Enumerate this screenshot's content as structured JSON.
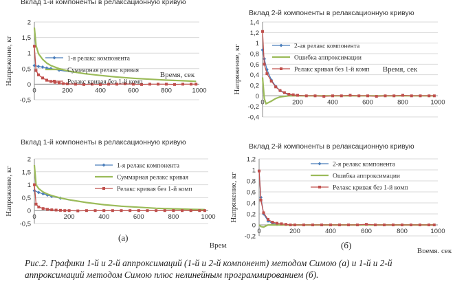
{
  "chart_data": [
    {
      "type": "line",
      "title": "Вклад 1-й компоненты в релаксационную кривую",
      "xlabel": "Время, сек",
      "ylabel": "Напряжение, кг",
      "xlim": [
        0,
        1000
      ],
      "ylim": [
        -0.5,
        2
      ],
      "yticks": [
        "-0,5",
        "0",
        "0,5",
        "1",
        "1,5",
        "2"
      ],
      "xticks": [
        "0",
        "200",
        "400",
        "600",
        "800",
        "1000"
      ],
      "legend_position": "top-right",
      "series": [
        {
          "name": "1-я релакс компонента",
          "color": "#4a7ebb",
          "marker": "diamond",
          "x": [
            0,
            25,
            50,
            75,
            100,
            150,
            200,
            300,
            400,
            500,
            600,
            700,
            800,
            900,
            980
          ],
          "values": [
            0.6,
            0.57,
            0.55,
            0.52,
            0.5,
            0.45,
            0.41,
            0.34,
            0.28,
            0.23,
            0.19,
            0.16,
            0.13,
            0.11,
            0.09
          ]
        },
        {
          "name": "Суммарная релакс кривая",
          "color": "#9bbb59",
          "marker": "none",
          "x": [
            0,
            10,
            25,
            50,
            75,
            100,
            150,
            200,
            300,
            400,
            500,
            600,
            700,
            800,
            900,
            980
          ],
          "values": [
            1.82,
            1.25,
            0.98,
            0.8,
            0.68,
            0.6,
            0.5,
            0.43,
            0.34,
            0.28,
            0.23,
            0.19,
            0.16,
            0.13,
            0.11,
            0.09
          ]
        },
        {
          "name": "Релакс кривая без 1-й комп",
          "color": "#c0504d",
          "marker": "square",
          "x": [
            0,
            10,
            25,
            50,
            75,
            100,
            125,
            150,
            175,
            200,
            250,
            300,
            350,
            400,
            450,
            500,
            550,
            600,
            650,
            700,
            750,
            800,
            850,
            900,
            950,
            980
          ],
          "values": [
            1.22,
            0.44,
            0.3,
            0.2,
            0.13,
            0.09,
            0.06,
            0.04,
            0.02,
            0.01,
            0.0,
            -0.01,
            0.0,
            -0.01,
            0.0,
            0.0,
            0.01,
            0.0,
            -0.01,
            0.0,
            0.0,
            0.0,
            -0.01,
            0.0,
            0.0,
            0.0
          ]
        }
      ]
    },
    {
      "type": "line",
      "title": "Вклад 2-й компоненты в релаксационную кривую",
      "xlabel": "Время, сек",
      "ylabel": "Напряжение, кг",
      "xlim": [
        0,
        1000
      ],
      "ylim": [
        -0.4,
        1.4
      ],
      "yticks": [
        "-0,4",
        "-0,2",
        "0",
        "0,2",
        "0,4",
        "0,6",
        "0,8",
        "1",
        "1,2",
        "1,4"
      ],
      "xticks": [
        "0",
        "200",
        "400",
        "600",
        "800",
        "1000"
      ],
      "legend_position": "top-right",
      "series": [
        {
          "name": "2-ая релакс компонента",
          "color": "#4a7ebb",
          "marker": "diamond",
          "x": [
            0,
            10,
            25,
            50,
            75,
            100,
            125,
            150,
            200,
            250,
            300,
            400,
            600,
            800,
            980
          ],
          "values": [
            0.87,
            0.7,
            0.5,
            0.3,
            0.18,
            0.1,
            0.05,
            0.02,
            0.01,
            0.0,
            0.0,
            0.0,
            0.0,
            0.0,
            0.0
          ]
        },
        {
          "name": "Ошибка аппроксимации",
          "color": "#9bbb59",
          "marker": "none",
          "x": [
            0,
            10,
            20,
            50,
            75,
            100,
            150,
            200,
            300,
            400,
            600,
            800,
            980
          ],
          "values": [
            0.35,
            -0.05,
            -0.15,
            -0.1,
            -0.05,
            -0.02,
            0.0,
            0.0,
            0.0,
            0.0,
            0.0,
            0.0,
            0.0
          ]
        },
        {
          "name": "Релакс кривая без 1-й комп",
          "color": "#c0504d",
          "marker": "square",
          "x": [
            0,
            10,
            25,
            50,
            75,
            100,
            125,
            150,
            175,
            200,
            250,
            300,
            350,
            400,
            450,
            500,
            550,
            600,
            650,
            700,
            750,
            800,
            850,
            900,
            950,
            980
          ],
          "values": [
            1.22,
            0.6,
            0.42,
            0.28,
            0.17,
            0.1,
            0.06,
            0.03,
            0.02,
            0.01,
            0.0,
            0.0,
            -0.01,
            0.0,
            0.0,
            0.01,
            0.0,
            0.0,
            -0.01,
            0.0,
            0.0,
            0.01,
            0.0,
            0.0,
            0.0,
            0.0
          ]
        }
      ]
    },
    {
      "type": "line",
      "title": "Вклад 1-й компоненты в релаксационную кривую",
      "xlabel": "Время, сек",
      "ylabel": "Напряжение, кг",
      "xlim": [
        0,
        1000
      ],
      "ylim": [
        -0.5,
        2
      ],
      "yticks": [
        "-0,5",
        "0",
        "0,5",
        "1",
        "1,5",
        "2"
      ],
      "xticks": [
        "0",
        "200",
        "400",
        "600",
        "800",
        "1000"
      ],
      "legend_position": "top-right",
      "series": [
        {
          "name": "1-я релакс компонента",
          "color": "#4a7ebb",
          "marker": "diamond",
          "x": [
            0,
            25,
            50,
            75,
            100,
            150,
            200,
            300,
            400,
            500,
            600,
            700,
            800,
            900,
            980
          ],
          "values": [
            0.77,
            0.7,
            0.65,
            0.6,
            0.55,
            0.48,
            0.41,
            0.31,
            0.23,
            0.17,
            0.13,
            0.09,
            0.07,
            0.05,
            0.04
          ]
        },
        {
          "name": "Суммарная релакс кривая",
          "color": "#9bbb59",
          "marker": "none",
          "x": [
            0,
            10,
            25,
            50,
            75,
            100,
            150,
            200,
            300,
            400,
            500,
            600,
            700,
            800,
            900,
            980
          ],
          "values": [
            1.76,
            1.0,
            0.85,
            0.72,
            0.64,
            0.58,
            0.49,
            0.42,
            0.31,
            0.23,
            0.17,
            0.13,
            0.09,
            0.07,
            0.05,
            0.04
          ]
        },
        {
          "name": "Релакс кривая без 1-й комп",
          "color": "#c0504d",
          "marker": "square",
          "x": [
            0,
            10,
            25,
            50,
            75,
            100,
            125,
            150,
            175,
            200,
            250,
            300,
            350,
            400,
            450,
            500,
            550,
            600,
            650,
            700,
            750,
            800,
            850,
            900,
            950,
            980
          ],
          "values": [
            1.0,
            0.25,
            0.14,
            0.08,
            0.05,
            0.03,
            0.02,
            0.01,
            0.0,
            0.0,
            -0.01,
            0.0,
            0.0,
            0.0,
            0.0,
            0.0,
            0.0,
            0.0,
            0.0,
            0.0,
            0.0,
            0.0,
            0.0,
            0.0,
            0.0,
            0.0
          ]
        }
      ]
    },
    {
      "type": "line",
      "title": "Вклад 2-й компоненты в релаксационную кривую",
      "xlabel": "Время, сек",
      "ylabel": "Напряжение, кг",
      "xlim": [
        0,
        1000
      ],
      "ylim": [
        -0.2,
        1.2
      ],
      "yticks": [
        "-0,2",
        "0",
        "0,2",
        "0,4",
        "0,6",
        "0,8",
        "1",
        "1,2"
      ],
      "xticks": [
        "0",
        "200",
        "400",
        "600",
        "800",
        "1000"
      ],
      "legend_position": "top-right",
      "series": [
        {
          "name": "2-я релакс компонента",
          "color": "#4a7ebb",
          "marker": "diamond",
          "x": [
            0,
            10,
            25,
            50,
            75,
            100,
            150,
            200,
            300,
            400,
            600,
            800,
            980
          ],
          "values": [
            0.98,
            0.5,
            0.2,
            0.07,
            0.03,
            0.01,
            0.0,
            0.0,
            0.0,
            0.0,
            0.0,
            0.0,
            0.0
          ]
        },
        {
          "name": "Ошибка аппроксимации",
          "color": "#9bbb59",
          "marker": "none",
          "x": [
            0,
            10,
            25,
            50,
            100,
            200,
            300,
            400,
            600,
            800,
            980
          ],
          "values": [
            0.0,
            -0.03,
            -0.04,
            0.0,
            0.0,
            0.0,
            0.0,
            0.0,
            0.0,
            0.0,
            0.0
          ]
        },
        {
          "name": "Релакс кривая без 1-й комп",
          "color": "#c0504d",
          "marker": "square",
          "x": [
            0,
            10,
            25,
            50,
            75,
            100,
            125,
            150,
            175,
            200,
            250,
            300,
            350,
            400,
            450,
            500,
            550,
            600,
            650,
            700,
            750,
            800,
            850,
            900,
            950,
            980
          ],
          "values": [
            0.98,
            0.45,
            0.22,
            0.1,
            0.05,
            0.03,
            0.02,
            0.01,
            0.0,
            0.0,
            0.0,
            0.0,
            0.0,
            0.0,
            0.0,
            0.0,
            0.0,
            0.01,
            0.0,
            0.0,
            0.0,
            0.0,
            0.0,
            0.0,
            0.0,
            0.0
          ]
        }
      ]
    }
  ],
  "labels": {
    "a": "(а)",
    "b": "(б)"
  },
  "caption": "Рис.2. Графики 1-й и 2-й аппроксимаций (1-й и 2-й компонент) методом Симою (а) и 1-й и 2-й аппроксимаций методом Симою плюс нелинейным программированием (б)."
}
